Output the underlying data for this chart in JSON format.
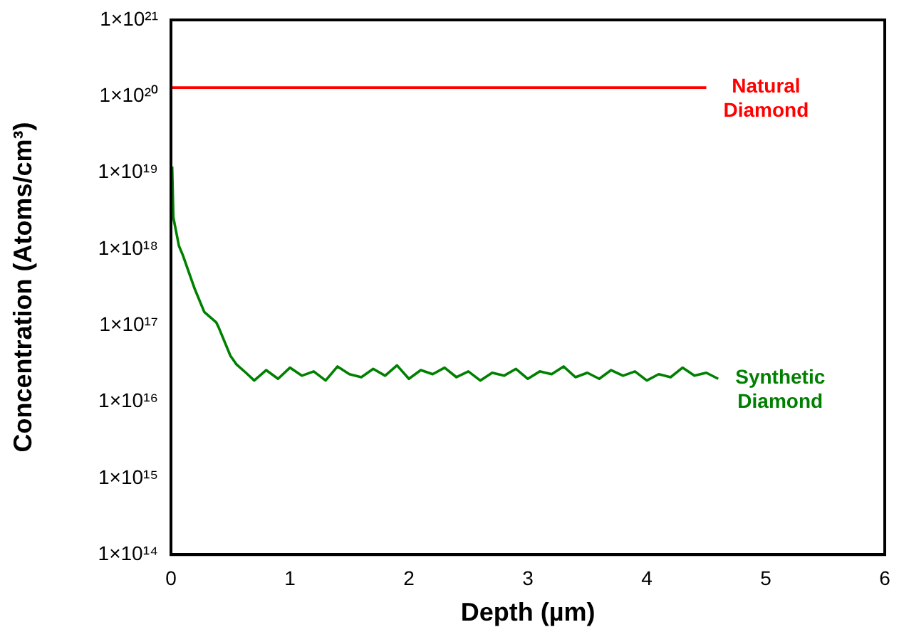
{
  "chart_data": {
    "type": "line",
    "xlabel": "Depth (µm)",
    "ylabel": "Concentration (Atoms/cm³)",
    "log": "y",
    "grid": false,
    "legend": false,
    "marker": "none",
    "line_style": "solid",
    "xlim": [
      0,
      6
    ],
    "xticks": [
      0,
      1,
      2,
      3,
      4,
      5,
      6
    ],
    "ylim": [
      100000000000000.0,
      1e+21
    ],
    "yticks": [
      {
        "value": 100000000000000.0,
        "label": "1×10¹⁴"
      },
      {
        "value": 1000000000000000.0,
        "label": "1×10¹⁵"
      },
      {
        "value": 1e+16,
        "label": "1×10¹⁶"
      },
      {
        "value": 1e+17,
        "label": "1×10¹⁷"
      },
      {
        "value": 1e+18,
        "label": "1×10¹⁸"
      },
      {
        "value": 1e+19,
        "label": "1×10¹⁹"
      },
      {
        "value": 1e+20,
        "label": "1×10²⁰"
      },
      {
        "value": 1e+21,
        "label": "1×10²¹"
      }
    ],
    "series": [
      {
        "name": "Natural Diamond",
        "color": "#ff0000",
        "x": [
          0,
          0.5,
          1,
          1.5,
          2,
          2.5,
          3,
          3.5,
          4,
          4.5
        ],
        "values": [
          1.3e+20,
          1.3e+20,
          1.3e+20,
          1.3e+20,
          1.3e+20,
          1.3e+20,
          1.3e+20,
          1.3e+20,
          1.3e+20,
          1.3e+20
        ]
      },
      {
        "name": "Synthetic Diamond",
        "color": "#008000",
        "x": [
          0.01,
          0.02,
          0.067,
          0.1,
          0.2,
          0.28,
          0.38,
          0.4,
          0.5,
          0.55,
          0.63,
          0.7,
          0.8,
          0.9,
          1,
          1.1,
          1.2,
          1.3,
          1.4,
          1.5,
          1.6,
          1.7,
          1.8,
          1.9,
          2,
          2.1,
          2.2,
          2.3,
          2.4,
          2.5,
          2.6,
          2.7,
          2.8,
          2.9,
          3,
          3.1,
          3.2,
          3.3,
          3.4,
          3.5,
          3.6,
          3.7,
          3.8,
          3.9,
          4,
          4.1,
          4.2,
          4.3,
          4.4,
          4.5,
          4.6
        ],
        "values": [
          1.2e+19,
          2.6e+18,
          1.1e+18,
          8.3e+17,
          3e+17,
          1.5e+17,
          1.1e+17,
          9.5e+16,
          4e+16,
          3.1e+16,
          2.4e+16,
          1.9e+16,
          2.6e+16,
          2e+16,
          2.8e+16,
          2.2e+16,
          2.5e+16,
          1.9e+16,
          2.9e+16,
          2.3e+16,
          2.1e+16,
          2.7e+16,
          2.2e+16,
          3e+16,
          2e+16,
          2.6e+16,
          2.3e+16,
          2.8e+16,
          2.1e+16,
          2.5e+16,
          1.9e+16,
          2.4e+16,
          2.2e+16,
          2.7e+16,
          2e+16,
          2.5e+16,
          2.3e+16,
          2.9e+16,
          2.1e+16,
          2.4e+16,
          2e+16,
          2.6e+16,
          2.2e+16,
          2.5e+16,
          1.9e+16,
          2.3e+16,
          2.1e+16,
          2.8e+16,
          2.2e+16,
          2.4e+16,
          2e+16
        ]
      }
    ]
  }
}
